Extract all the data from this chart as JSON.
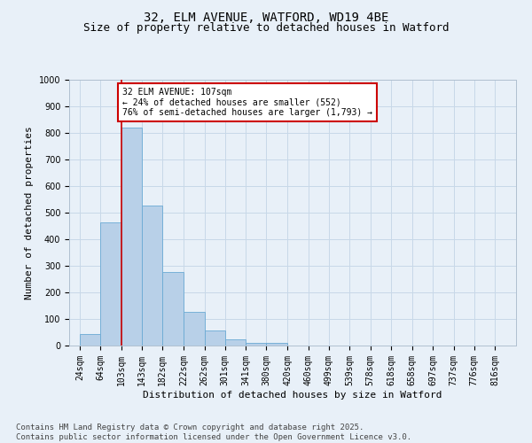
{
  "title_line1": "32, ELM AVENUE, WATFORD, WD19 4BE",
  "title_line2": "Size of property relative to detached houses in Watford",
  "xlabel": "Distribution of detached houses by size in Watford",
  "ylabel": "Number of detached properties",
  "bin_labels": [
    "24sqm",
    "64sqm",
    "103sqm",
    "143sqm",
    "182sqm",
    "222sqm",
    "262sqm",
    "301sqm",
    "341sqm",
    "380sqm",
    "420sqm",
    "460sqm",
    "499sqm",
    "539sqm",
    "578sqm",
    "618sqm",
    "658sqm",
    "697sqm",
    "737sqm",
    "776sqm",
    "816sqm"
  ],
  "bin_edges": [
    24,
    64,
    103,
    143,
    182,
    222,
    262,
    301,
    341,
    380,
    420,
    460,
    499,
    539,
    578,
    618,
    658,
    697,
    737,
    776,
    816,
    856
  ],
  "values": [
    45,
    462,
    820,
    527,
    278,
    128,
    58,
    22,
    10,
    10,
    0,
    0,
    0,
    0,
    0,
    0,
    0,
    0,
    0,
    0,
    0
  ],
  "bar_color": "#b8d0e8",
  "bar_edgecolor": "#6aaad4",
  "property_value": 107,
  "property_line_bin_edge": 103,
  "annotation_line1": "32 ELM AVENUE: 107sqm",
  "annotation_line2": "← 24% of detached houses are smaller (552)",
  "annotation_line3": "76% of semi-detached houses are larger (1,793) →",
  "annotation_box_facecolor": "#ffffff",
  "annotation_box_edgecolor": "#cc0000",
  "vline_color": "#cc0000",
  "grid_color": "#c8d8e8",
  "ylim": [
    0,
    1000
  ],
  "yticks": [
    0,
    100,
    200,
    300,
    400,
    500,
    600,
    700,
    800,
    900,
    1000
  ],
  "background_color": "#e8f0f8",
  "footer_line1": "Contains HM Land Registry data © Crown copyright and database right 2025.",
  "footer_line2": "Contains public sector information licensed under the Open Government Licence v3.0.",
  "title_fontsize": 10,
  "subtitle_fontsize": 9,
  "axis_label_fontsize": 8,
  "tick_fontsize": 7,
  "annotation_fontsize": 7,
  "footer_fontsize": 6.5
}
